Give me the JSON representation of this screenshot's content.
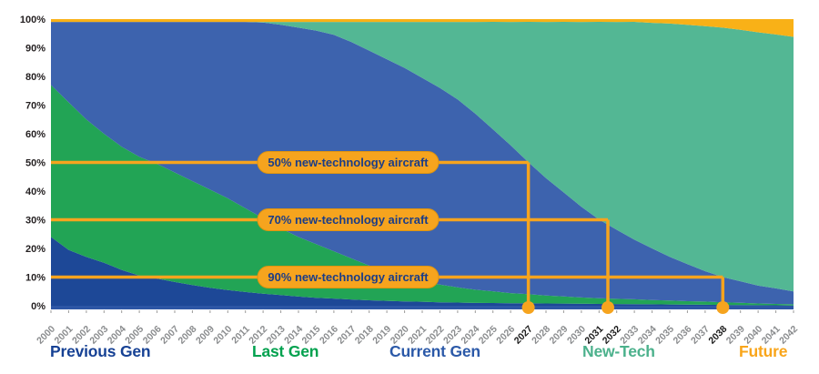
{
  "chart_data": {
    "type": "area",
    "stacked": true,
    "unit": "percent",
    "title": "",
    "xlabel": "",
    "ylabel": "",
    "ylim": [
      0,
      100
    ],
    "grid": false,
    "legend_position": "bottom",
    "yticks": [
      "0%",
      "10%",
      "20%",
      "30%",
      "40%",
      "50%",
      "60%",
      "70%",
      "80%",
      "90%",
      "100%"
    ],
    "years": [
      2000,
      2001,
      2002,
      2003,
      2004,
      2005,
      2006,
      2007,
      2008,
      2009,
      2010,
      2011,
      2012,
      2013,
      2014,
      2015,
      2016,
      2017,
      2018,
      2019,
      2020,
      2021,
      2022,
      2023,
      2024,
      2025,
      2026,
      2027,
      2028,
      2029,
      2030,
      2031,
      2032,
      2033,
      2034,
      2035,
      2036,
      2037,
      2038,
      2039,
      2040,
      2041,
      2042
    ],
    "series": [
      {
        "name": "Previous Gen",
        "color": "#1d4897",
        "values": [
          24,
          19.5,
          17,
          15,
          12.5,
          10.5,
          9.5,
          8.3,
          7.2,
          6.3,
          5.5,
          4.8,
          4.2,
          3.7,
          3.2,
          2.8,
          2.5,
          2.2,
          1.9,
          1.7,
          1.5,
          1.4,
          1.2,
          1.1,
          1,
          0.95,
          0.9,
          0.85,
          0.8,
          0.75,
          0.7,
          0.65,
          0.6,
          0.55,
          0.5,
          0.45,
          0.4,
          0.35,
          0.3,
          0.25,
          0.2,
          0.15,
          0.1
        ]
      },
      {
        "name": "Last Gen",
        "color": "#22a455",
        "values": [
          53,
          51.5,
          48,
          45,
          43,
          41.5,
          40,
          38.2,
          36.3,
          34.2,
          32,
          29.2,
          26.3,
          23.3,
          20.8,
          18.7,
          16.5,
          14.3,
          12.1,
          10.3,
          8.5,
          7.2,
          6.2,
          5.3,
          4.6,
          4.1,
          3.5,
          3.2,
          2.8,
          2.5,
          2.2,
          2,
          1.8,
          1.7,
          1.5,
          1.4,
          1.2,
          1.1,
          0.9,
          0.8,
          0.6,
          0.5,
          0.4
        ]
      },
      {
        "name": "Current Gen",
        "color": "#3d63ae",
        "values": [
          22,
          28,
          34,
          39,
          43.5,
          47,
          49.5,
          52.5,
          55.5,
          58.5,
          61.5,
          65,
          68.3,
          71,
          73,
          74.5,
          75.5,
          75.5,
          75,
          74,
          73,
          70.9,
          68.6,
          65.6,
          61.4,
          56.5,
          51.6,
          46,
          40.9,
          36.3,
          31.6,
          27.4,
          24.1,
          20.8,
          18,
          15.2,
          12.9,
          10.6,
          8.8,
          7.5,
          6.2,
          5.4,
          4.5
        ]
      },
      {
        "name": "New-Tech",
        "color": "#53b794",
        "values": [
          0,
          0,
          0,
          0,
          0,
          0,
          0,
          0,
          0,
          0,
          0,
          0,
          0.2,
          1,
          2,
          3,
          4.5,
          7,
          10,
          13,
          16,
          19.5,
          23,
          27,
          32,
          37.5,
          43,
          49,
          54.5,
          59.5,
          64.5,
          69,
          72.5,
          76,
          78.7,
          81.4,
          83.5,
          85.5,
          87,
          87.7,
          88.4,
          88.6,
          88.8
        ]
      },
      {
        "name": "Future",
        "color": "#f9b117",
        "values": [
          1,
          1,
          1,
          1,
          1,
          1,
          1,
          1,
          1,
          1,
          1,
          1,
          1,
          1,
          1,
          1,
          1,
          1,
          1,
          1,
          1,
          1,
          1,
          1,
          1,
          1,
          1,
          1,
          1,
          1,
          1,
          1,
          1,
          1,
          1.3,
          1.6,
          2,
          2.5,
          3,
          3.8,
          4.6,
          5.4,
          6.2
        ]
      }
    ],
    "annotations": [
      {
        "label": "50% new-technology aircraft",
        "milestone_pct": 50,
        "line_level_pct": 50,
        "year": 2027
      },
      {
        "label": "70% new-technology aircraft",
        "milestone_pct": 70,
        "line_level_pct": 30,
        "year": 2031.5
      },
      {
        "label": "90% new-technology aircraft",
        "milestone_pct": 90,
        "line_level_pct": 10,
        "year": 2038
      }
    ],
    "emphasized_years": [
      2027,
      2031,
      2032,
      2038
    ],
    "axis_line_color": "#2d56a5",
    "tick_color": "#9b9b9b",
    "tick_label_color": "#8a8c8e",
    "emphasized_label_color": "#1a1a1a",
    "ytick_label_color": "#231f20",
    "annotation_color": "#f6a41e",
    "annotation_stroke": "#e0940e",
    "annotation_text_color": "#1b3d87",
    "background": "#ffffff"
  },
  "legend": {
    "items": [
      {
        "label": "Previous Gen",
        "color": "#164194"
      },
      {
        "label": "Last Gen",
        "color": "#00a14e"
      },
      {
        "label": "Current Gen",
        "color": "#2b59a8"
      },
      {
        "label": "New-Tech",
        "color": "#4cb18c"
      },
      {
        "label": "Future",
        "color": "#f9a51a"
      }
    ]
  }
}
